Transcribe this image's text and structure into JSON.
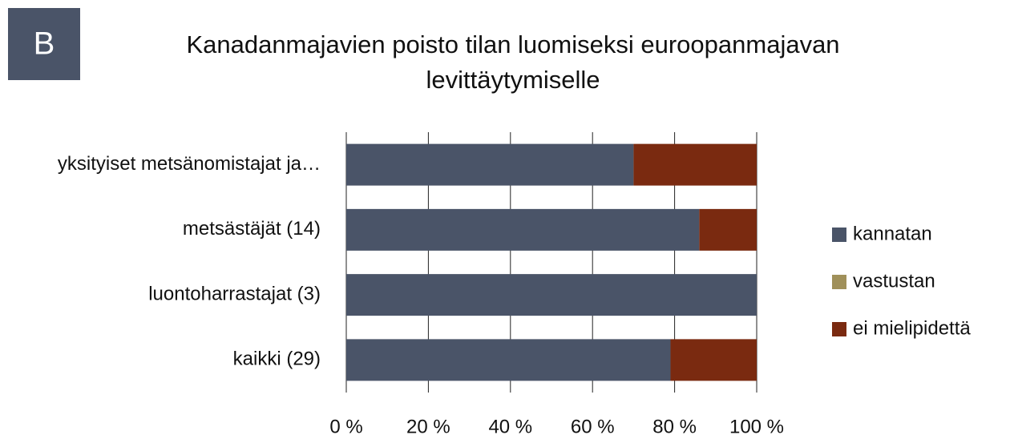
{
  "chart_data": {
    "type": "bar",
    "orientation": "horizontal",
    "stacked": true,
    "panel_label": "B",
    "title": "Kanadanmajavien poisto tilan luomiseksi euroopanmajavan levittäytymiselle",
    "categories": [
      "yksityiset metsänomistajat ja…",
      "metsästäjät (14)",
      "luontoharrastajat (3)",
      "kaikki (29)"
    ],
    "series": [
      {
        "name": "kannatan",
        "color": "#4a5468",
        "values": [
          70,
          86,
          100,
          79
        ]
      },
      {
        "name": "vastustan",
        "color": "#a0905a",
        "values": [
          0,
          0,
          0,
          0
        ]
      },
      {
        "name": "ei mielipidettä",
        "color": "#7a2a10",
        "values": [
          30,
          14,
          0,
          21
        ]
      }
    ],
    "xlim": [
      0,
      100
    ],
    "xticks": [
      {
        "value": 0,
        "label": "0 %"
      },
      {
        "value": 20,
        "label": "20 %"
      },
      {
        "value": 40,
        "label": "40 %"
      },
      {
        "value": 60,
        "label": "60 %"
      },
      {
        "value": 80,
        "label": "80 %"
      },
      {
        "value": 100,
        "label": "100 %"
      }
    ],
    "grid": true,
    "legend": "right"
  }
}
